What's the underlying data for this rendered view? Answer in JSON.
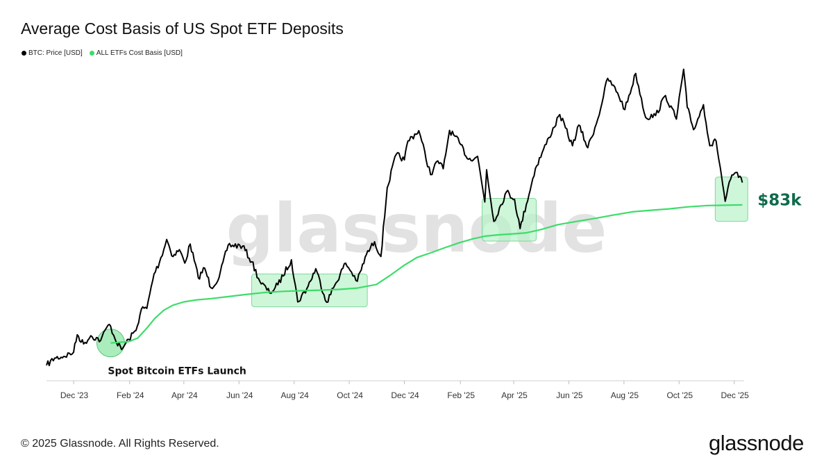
{
  "header": {
    "title": "Average Cost Basis of US Spot ETF Deposits"
  },
  "footer": {
    "copyright": "© 2025 Glassnode. All Rights Reserved.",
    "logo": "glassnode"
  },
  "watermark": "glassnode",
  "chart_data": {
    "type": "line",
    "title": "Average Cost Basis of US Spot ETF Deposits",
    "legend_placement": "top-left",
    "grid": false,
    "x_ticks": [
      "Dec '23",
      "Feb '24",
      "Apr '24",
      "Jun '24",
      "Aug '24",
      "Oct '24",
      "Dec '24",
      "Feb '25",
      "Apr '25",
      "Jun '25",
      "Aug '25",
      "Oct '25",
      "Dec '25"
    ],
    "x_range": [
      "2023-11-01",
      "2025-12-12"
    ],
    "y_range": [
      30000,
      130000
    ],
    "series": [
      {
        "name": "BTC: Price [USD]",
        "color": "#000000",
        "points": [
          [
            "2023-11-01",
            34700
          ],
          [
            "2023-11-10",
            36900
          ],
          [
            "2023-11-20",
            37400
          ],
          [
            "2023-12-01",
            38700
          ],
          [
            "2023-12-05",
            44000
          ],
          [
            "2023-12-12",
            41200
          ],
          [
            "2023-12-20",
            43700
          ],
          [
            "2023-12-31",
            42300
          ],
          [
            "2024-01-08",
            46900
          ],
          [
            "2024-01-11",
            46600
          ],
          [
            "2024-01-16",
            42600
          ],
          [
            "2024-01-23",
            39500
          ],
          [
            "2024-01-31",
            42600
          ],
          [
            "2024-02-08",
            45300
          ],
          [
            "2024-02-14",
            51800
          ],
          [
            "2024-02-20",
            52000
          ],
          [
            "2024-02-28",
            62500
          ],
          [
            "2024-03-05",
            66000
          ],
          [
            "2024-03-13",
            73000
          ],
          [
            "2024-03-20",
            67800
          ],
          [
            "2024-03-27",
            69900
          ],
          [
            "2024-04-02",
            65800
          ],
          [
            "2024-04-08",
            71600
          ],
          [
            "2024-04-17",
            61300
          ],
          [
            "2024-04-24",
            64300
          ],
          [
            "2024-05-01",
            58300
          ],
          [
            "2024-05-10",
            61400
          ],
          [
            "2024-05-20",
            71300
          ],
          [
            "2024-06-05",
            71000
          ],
          [
            "2024-06-15",
            66200
          ],
          [
            "2024-06-24",
            60300
          ],
          [
            "2024-07-05",
            56700
          ],
          [
            "2024-07-14",
            59200
          ],
          [
            "2024-07-29",
            66800
          ],
          [
            "2024-08-05",
            54000
          ],
          [
            "2024-08-15",
            58000
          ],
          [
            "2024-08-25",
            64100
          ],
          [
            "2024-09-06",
            53900
          ],
          [
            "2024-09-15",
            59100
          ],
          [
            "2024-09-27",
            65800
          ],
          [
            "2024-10-10",
            60300
          ],
          [
            "2024-10-20",
            68400
          ],
          [
            "2024-10-29",
            72300
          ],
          [
            "2024-11-05",
            67800
          ],
          [
            "2024-11-12",
            88700
          ],
          [
            "2024-11-22",
            98900
          ],
          [
            "2024-12-01",
            97200
          ],
          [
            "2024-12-05",
            103000
          ],
          [
            "2024-12-17",
            106100
          ],
          [
            "2024-12-30",
            92700
          ],
          [
            "2025-01-07",
            96900
          ],
          [
            "2025-01-13",
            94500
          ],
          [
            "2025-01-20",
            106200
          ],
          [
            "2025-01-31",
            102400
          ],
          [
            "2025-02-10",
            97400
          ],
          [
            "2025-02-20",
            98300
          ],
          [
            "2025-02-28",
            84400
          ],
          [
            "2025-03-02",
            94200
          ],
          [
            "2025-03-10",
            78500
          ],
          [
            "2025-03-24",
            87500
          ],
          [
            "2025-04-02",
            85200
          ],
          [
            "2025-04-08",
            76300
          ],
          [
            "2025-04-15",
            83700
          ],
          [
            "2025-04-25",
            94600
          ],
          [
            "2025-05-10",
            104000
          ],
          [
            "2025-05-22",
            111000
          ],
          [
            "2025-06-05",
            101500
          ],
          [
            "2025-06-12",
            107800
          ],
          [
            "2025-06-22",
            100900
          ],
          [
            "2025-07-03",
            109600
          ],
          [
            "2025-07-14",
            122000
          ],
          [
            "2025-07-25",
            117600
          ],
          [
            "2025-08-02",
            112500
          ],
          [
            "2025-08-14",
            123500
          ],
          [
            "2025-08-25",
            110100
          ],
          [
            "2025-09-05",
            110700
          ],
          [
            "2025-09-16",
            116800
          ],
          [
            "2025-09-28",
            109600
          ],
          [
            "2025-10-06",
            124800
          ],
          [
            "2025-10-10",
            113200
          ],
          [
            "2025-10-17",
            106400
          ],
          [
            "2025-10-28",
            114000
          ],
          [
            "2025-11-04",
            101500
          ],
          [
            "2025-11-11",
            103000
          ],
          [
            "2025-11-17",
            92200
          ],
          [
            "2025-11-21",
            84600
          ],
          [
            "2025-11-27",
            91300
          ],
          [
            "2025-12-03",
            93400
          ],
          [
            "2025-12-10",
            90300
          ]
        ]
      },
      {
        "name": "ALL ETFs Cost Basis [USD]",
        "color": "#3ddc6a",
        "points": [
          [
            "2024-01-11",
            41500
          ],
          [
            "2024-01-20",
            41700
          ],
          [
            "2024-01-31",
            41900
          ],
          [
            "2024-02-10",
            43000
          ],
          [
            "2024-02-20",
            46000
          ],
          [
            "2024-02-29",
            49000
          ],
          [
            "2024-03-10",
            51500
          ],
          [
            "2024-03-20",
            53000
          ],
          [
            "2024-04-01",
            54000
          ],
          [
            "2024-04-15",
            54600
          ],
          [
            "2024-05-01",
            55000
          ],
          [
            "2024-05-20",
            55600
          ],
          [
            "2024-06-10",
            56300
          ],
          [
            "2024-07-01",
            56900
          ],
          [
            "2024-07-20",
            57200
          ],
          [
            "2024-08-10",
            57400
          ],
          [
            "2024-09-01",
            57600
          ],
          [
            "2024-09-20",
            57800
          ],
          [
            "2024-10-10",
            58200
          ],
          [
            "2024-10-31",
            59300
          ],
          [
            "2024-11-15",
            62000
          ],
          [
            "2024-11-30",
            65000
          ],
          [
            "2024-12-15",
            67500
          ],
          [
            "2024-12-31",
            69000
          ],
          [
            "2025-01-15",
            70500
          ],
          [
            "2025-01-31",
            72000
          ],
          [
            "2025-02-15",
            73200
          ],
          [
            "2025-02-28",
            74000
          ],
          [
            "2025-03-15",
            74400
          ],
          [
            "2025-03-31",
            74700
          ],
          [
            "2025-04-15",
            75000
          ],
          [
            "2025-05-01",
            76000
          ],
          [
            "2025-05-20",
            77500
          ],
          [
            "2025-06-10",
            78500
          ],
          [
            "2025-06-30",
            79400
          ],
          [
            "2025-07-20",
            80400
          ],
          [
            "2025-08-10",
            81400
          ],
          [
            "2025-09-01",
            81900
          ],
          [
            "2025-09-20",
            82300
          ],
          [
            "2025-10-10",
            82900
          ],
          [
            "2025-10-31",
            83300
          ],
          [
            "2025-11-20",
            83400
          ],
          [
            "2025-12-10",
            83500
          ]
        ]
      }
    ],
    "annotations": [
      {
        "type": "circle",
        "text": "Spot Bitcoin ETFs Launch",
        "x": "2024-01-11",
        "y": 41500
      },
      {
        "type": "box",
        "x0": "2024-06-15",
        "x1": "2024-10-21",
        "y0": 52500,
        "y1": 62500
      },
      {
        "type": "box",
        "x0": "2025-02-25",
        "x1": "2025-04-26",
        "y0": 72500,
        "y1": 85500
      },
      {
        "type": "box",
        "x0": "2025-11-10",
        "x1": "2025-12-16",
        "y0": 78500,
        "y1": 92000,
        "text": "$83k",
        "text_color": "#0e6b4c"
      }
    ]
  }
}
